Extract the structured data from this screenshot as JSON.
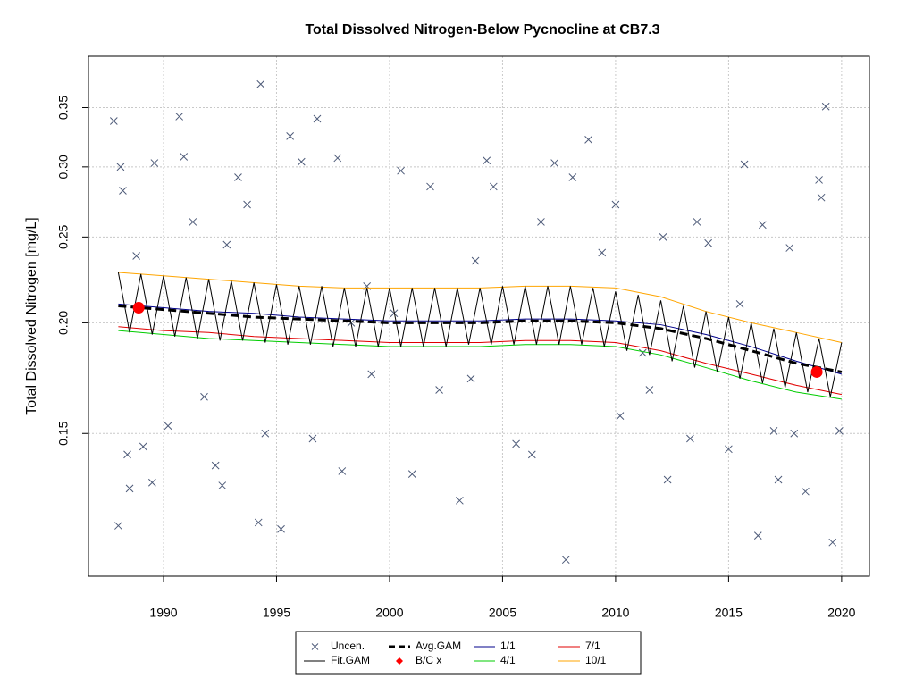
{
  "chart_data": {
    "type": "line",
    "title": "Total Dissolved Nitrogen-Below Pycnocline at CB7.3",
    "y_label": "Total Dissolved Nitrogen [mg/L]",
    "log_y": true,
    "grid": true,
    "legend": "bottom",
    "xlim": [
      1986.68,
      2021.23
    ],
    "xticks": [
      1990,
      1995,
      2000,
      2005,
      2010,
      2015,
      2020
    ],
    "ylim": [
      0.1035,
      0.4
    ],
    "yticks": [
      0.15,
      {
        "value": 0.2,
        "label": "0.20"
      },
      0.25,
      {
        "value": 0.3,
        "label": "0.30"
      },
      0.35
    ],
    "x": [
      1988,
      1990,
      1992,
      1994,
      1996,
      1998,
      2000,
      2002,
      2004,
      2006,
      2008,
      2010,
      2012,
      2014,
      2016,
      2018,
      2020
    ],
    "series": [
      {
        "name": "Uncen.",
        "type": "scatter",
        "marker": "x",
        "color": "#4d5a78",
        "x": [
          1987.8,
          1988.0,
          1988.1,
          1988.2,
          1988.4,
          1988.5,
          1988.8,
          1989.1,
          1989.5,
          1989.6,
          1990.2,
          1990.7,
          1990.9,
          1991.3,
          1991.8,
          1992.3,
          1992.6,
          1993.3,
          1993.7,
          1994.2,
          1994.3,
          1994.5,
          1995.2,
          1995.6,
          1996.1,
          1996.6,
          1996.8,
          1997.7,
          1997.9,
          1998.3,
          1999.2,
          2000.5,
          2001.0,
          2001.8,
          2002.2,
          2003.1,
          2003.8,
          2004.3,
          2004.6,
          2005.6,
          2006.3,
          2007.3,
          2007.8,
          2008.1,
          2008.8,
          2009.4,
          2010.0,
          2010.2,
          2011.2,
          2012.1,
          2012.3,
          2013.3,
          2013.6,
          2014.1,
          2015.0,
          2015.7,
          2016.3,
          2016.5,
          2017.0,
          2017.2,
          2017.7,
          2017.9,
          2018.4,
          2019.0,
          2019.1,
          2019.3,
          2019.6,
          2019.9,
          2015.5,
          2000.2,
          1999.0,
          2006.7,
          2011.5,
          2003.6,
          1992.8
        ],
        "values": [
          0.338,
          0.118,
          0.3,
          0.282,
          0.142,
          0.13,
          0.238,
          0.145,
          0.132,
          0.303,
          0.153,
          0.342,
          0.308,
          0.26,
          0.165,
          0.138,
          0.131,
          0.292,
          0.272,
          0.119,
          0.372,
          0.15,
          0.117,
          0.325,
          0.304,
          0.148,
          0.34,
          0.307,
          0.136,
          0.2,
          0.175,
          0.297,
          0.135,
          0.285,
          0.168,
          0.126,
          0.235,
          0.305,
          0.285,
          0.146,
          0.142,
          0.303,
          0.108,
          0.292,
          0.322,
          0.24,
          0.272,
          0.157,
          0.185,
          0.25,
          0.133,
          0.148,
          0.26,
          0.246,
          0.144,
          0.302,
          0.115,
          0.258,
          0.151,
          0.133,
          0.243,
          0.15,
          0.129,
          0.29,
          0.277,
          0.351,
          0.113,
          0.151,
          0.21,
          0.205,
          0.22,
          0.26,
          0.168,
          0.173,
          0.245
        ]
      },
      {
        "name": "Fit.GAM",
        "type": "line",
        "color": "#000000",
        "x": [
          1988,
          1988.5,
          1989,
          1989.5,
          1990,
          1990.5,
          1991,
          1991.5,
          1992,
          1992.5,
          1993,
          1993.5,
          1994,
          1994.5,
          1995,
          1995.5,
          1996,
          1996.5,
          1997,
          1997.5,
          1998,
          1998.5,
          1999,
          1999.5,
          2000,
          2000.5,
          2001,
          2001.5,
          2002,
          2002.5,
          2003,
          2003.5,
          2004,
          2004.5,
          2005,
          2005.5,
          2006,
          2006.5,
          2007,
          2007.5,
          2008,
          2008.5,
          2009,
          2009.5,
          2010,
          2010.5,
          2011,
          2011.5,
          2012,
          2012.5,
          2013,
          2013.5,
          2014,
          2014.5,
          2015,
          2015.5,
          2016,
          2016.5,
          2017,
          2017.5,
          2018,
          2018.5,
          2019,
          2019.5,
          2020
        ],
        "values": [
          0.228,
          0.195,
          0.227,
          0.194,
          0.226,
          0.193,
          0.225,
          0.192,
          0.224,
          0.191,
          0.223,
          0.191,
          0.222,
          0.19,
          0.221,
          0.189,
          0.22,
          0.189,
          0.22,
          0.188,
          0.219,
          0.188,
          0.219,
          0.188,
          0.219,
          0.188,
          0.219,
          0.188,
          0.219,
          0.188,
          0.219,
          0.189,
          0.219,
          0.189,
          0.22,
          0.189,
          0.22,
          0.189,
          0.22,
          0.189,
          0.22,
          0.189,
          0.219,
          0.188,
          0.217,
          0.186,
          0.215,
          0.184,
          0.212,
          0.181,
          0.209,
          0.178,
          0.206,
          0.176,
          0.203,
          0.173,
          0.2,
          0.171,
          0.197,
          0.169,
          0.195,
          0.167,
          0.192,
          0.165,
          0.19
        ]
      },
      {
        "name": "Avg.GAM",
        "type": "line",
        "dash": true,
        "color": "#000000",
        "values": [
          0.209,
          0.207,
          0.205,
          0.203,
          0.202,
          0.201,
          0.2,
          0.2,
          0.2,
          0.201,
          0.201,
          0.2,
          0.197,
          0.192,
          0.186,
          0.18,
          0.176
        ]
      },
      {
        "name": "B/C x",
        "type": "scatter",
        "marker": "dot",
        "color": "#ff0000",
        "x": [
          1988.9,
          2018.9
        ],
        "values": [
          0.208,
          0.176
        ]
      },
      {
        "name": "1/1",
        "type": "line",
        "color": "#00008b",
        "values": [
          0.21,
          0.208,
          0.206,
          0.205,
          0.203,
          0.202,
          0.201,
          0.201,
          0.201,
          0.202,
          0.202,
          0.201,
          0.199,
          0.194,
          0.188,
          0.181,
          0.175
        ]
      },
      {
        "name": "4/1",
        "type": "line",
        "color": "#00cc00",
        "values": [
          0.196,
          0.194,
          0.192,
          0.191,
          0.19,
          0.189,
          0.188,
          0.188,
          0.188,
          0.189,
          0.189,
          0.188,
          0.184,
          0.178,
          0.172,
          0.167,
          0.164
        ]
      },
      {
        "name": "7/1",
        "type": "line",
        "color": "#e00000",
        "values": [
          0.198,
          0.196,
          0.195,
          0.193,
          0.192,
          0.191,
          0.19,
          0.19,
          0.19,
          0.191,
          0.191,
          0.19,
          0.186,
          0.18,
          0.175,
          0.17,
          0.166
        ]
      },
      {
        "name": "10/1",
        "type": "line",
        "color": "#ffa500",
        "values": [
          0.228,
          0.226,
          0.224,
          0.222,
          0.22,
          0.219,
          0.219,
          0.219,
          0.219,
          0.22,
          0.22,
          0.219,
          0.214,
          0.206,
          0.2,
          0.195,
          0.19
        ]
      }
    ]
  }
}
